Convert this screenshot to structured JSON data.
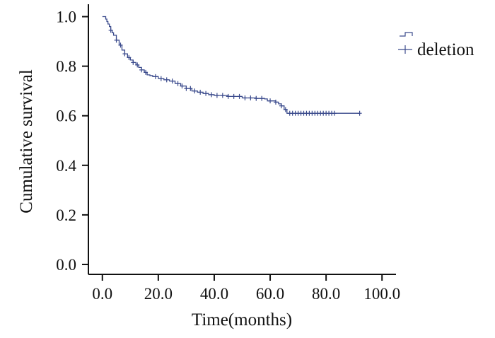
{
  "chart_data": {
    "type": "line",
    "title": "",
    "xlabel": "Time(months)",
    "ylabel": "Cumulative survival",
    "xlim": [
      -5,
      105
    ],
    "ylim": [
      -0.04,
      1.05
    ],
    "x_ticks": [
      0,
      20,
      40,
      60,
      80,
      100
    ],
    "x_tick_labels": [
      "0.0",
      "20.0",
      "40.0",
      "60.0",
      "80.0",
      "100.0"
    ],
    "y_ticks": [
      0,
      0.2,
      0.4,
      0.6,
      0.8,
      1.0
    ],
    "y_tick_labels": [
      "0.0",
      "0.2",
      "0.4",
      "0.6",
      "0.8",
      "1.0"
    ],
    "grid": false,
    "legend_position": "top-right",
    "legend_entries": [
      "deletion"
    ],
    "series": [
      {
        "name": "deletion",
        "color": "#3a4a8c",
        "curve": [
          [
            0,
            1.0
          ],
          [
            1,
            1.0
          ],
          [
            1.2,
            0.99
          ],
          [
            1.6,
            0.98
          ],
          [
            2,
            0.97
          ],
          [
            2.5,
            0.96
          ],
          [
            3,
            0.945
          ],
          [
            3.5,
            0.935
          ],
          [
            4,
            0.925
          ],
          [
            5,
            0.905
          ],
          [
            6,
            0.885
          ],
          [
            7,
            0.865
          ],
          [
            8,
            0.85
          ],
          [
            9,
            0.835
          ],
          [
            10,
            0.825
          ],
          [
            11,
            0.815
          ],
          [
            12,
            0.805
          ],
          [
            13,
            0.795
          ],
          [
            14,
            0.785
          ],
          [
            15,
            0.775
          ],
          [
            16,
            0.765
          ],
          [
            17,
            0.762
          ],
          [
            18,
            0.758
          ],
          [
            20,
            0.75
          ],
          [
            22,
            0.745
          ],
          [
            24,
            0.74
          ],
          [
            26,
            0.73
          ],
          [
            28,
            0.72
          ],
          [
            30,
            0.71
          ],
          [
            32,
            0.7
          ],
          [
            34,
            0.695
          ],
          [
            36,
            0.69
          ],
          [
            38,
            0.685
          ],
          [
            40,
            0.682
          ],
          [
            45,
            0.678
          ],
          [
            50,
            0.672
          ],
          [
            55,
            0.67
          ],
          [
            58,
            0.668
          ],
          [
            59,
            0.66
          ],
          [
            62,
            0.655
          ],
          [
            63,
            0.648
          ],
          [
            64,
            0.64
          ],
          [
            65,
            0.625
          ],
          [
            66,
            0.61
          ],
          [
            92,
            0.61
          ]
        ],
        "censor_x": [
          3,
          5,
          6.5,
          8,
          9.5,
          11,
          12.5,
          14,
          15.5,
          19,
          21,
          23,
          25,
          27,
          28.5,
          30,
          31.5,
          33,
          35,
          37,
          39,
          41,
          43,
          45,
          47,
          49,
          51,
          53,
          55,
          57,
          60,
          62,
          64,
          65.5,
          67,
          68,
          69,
          70,
          71,
          72,
          73,
          74,
          75,
          76,
          77,
          78,
          79,
          80,
          81,
          82,
          83,
          92
        ]
      }
    ]
  }
}
